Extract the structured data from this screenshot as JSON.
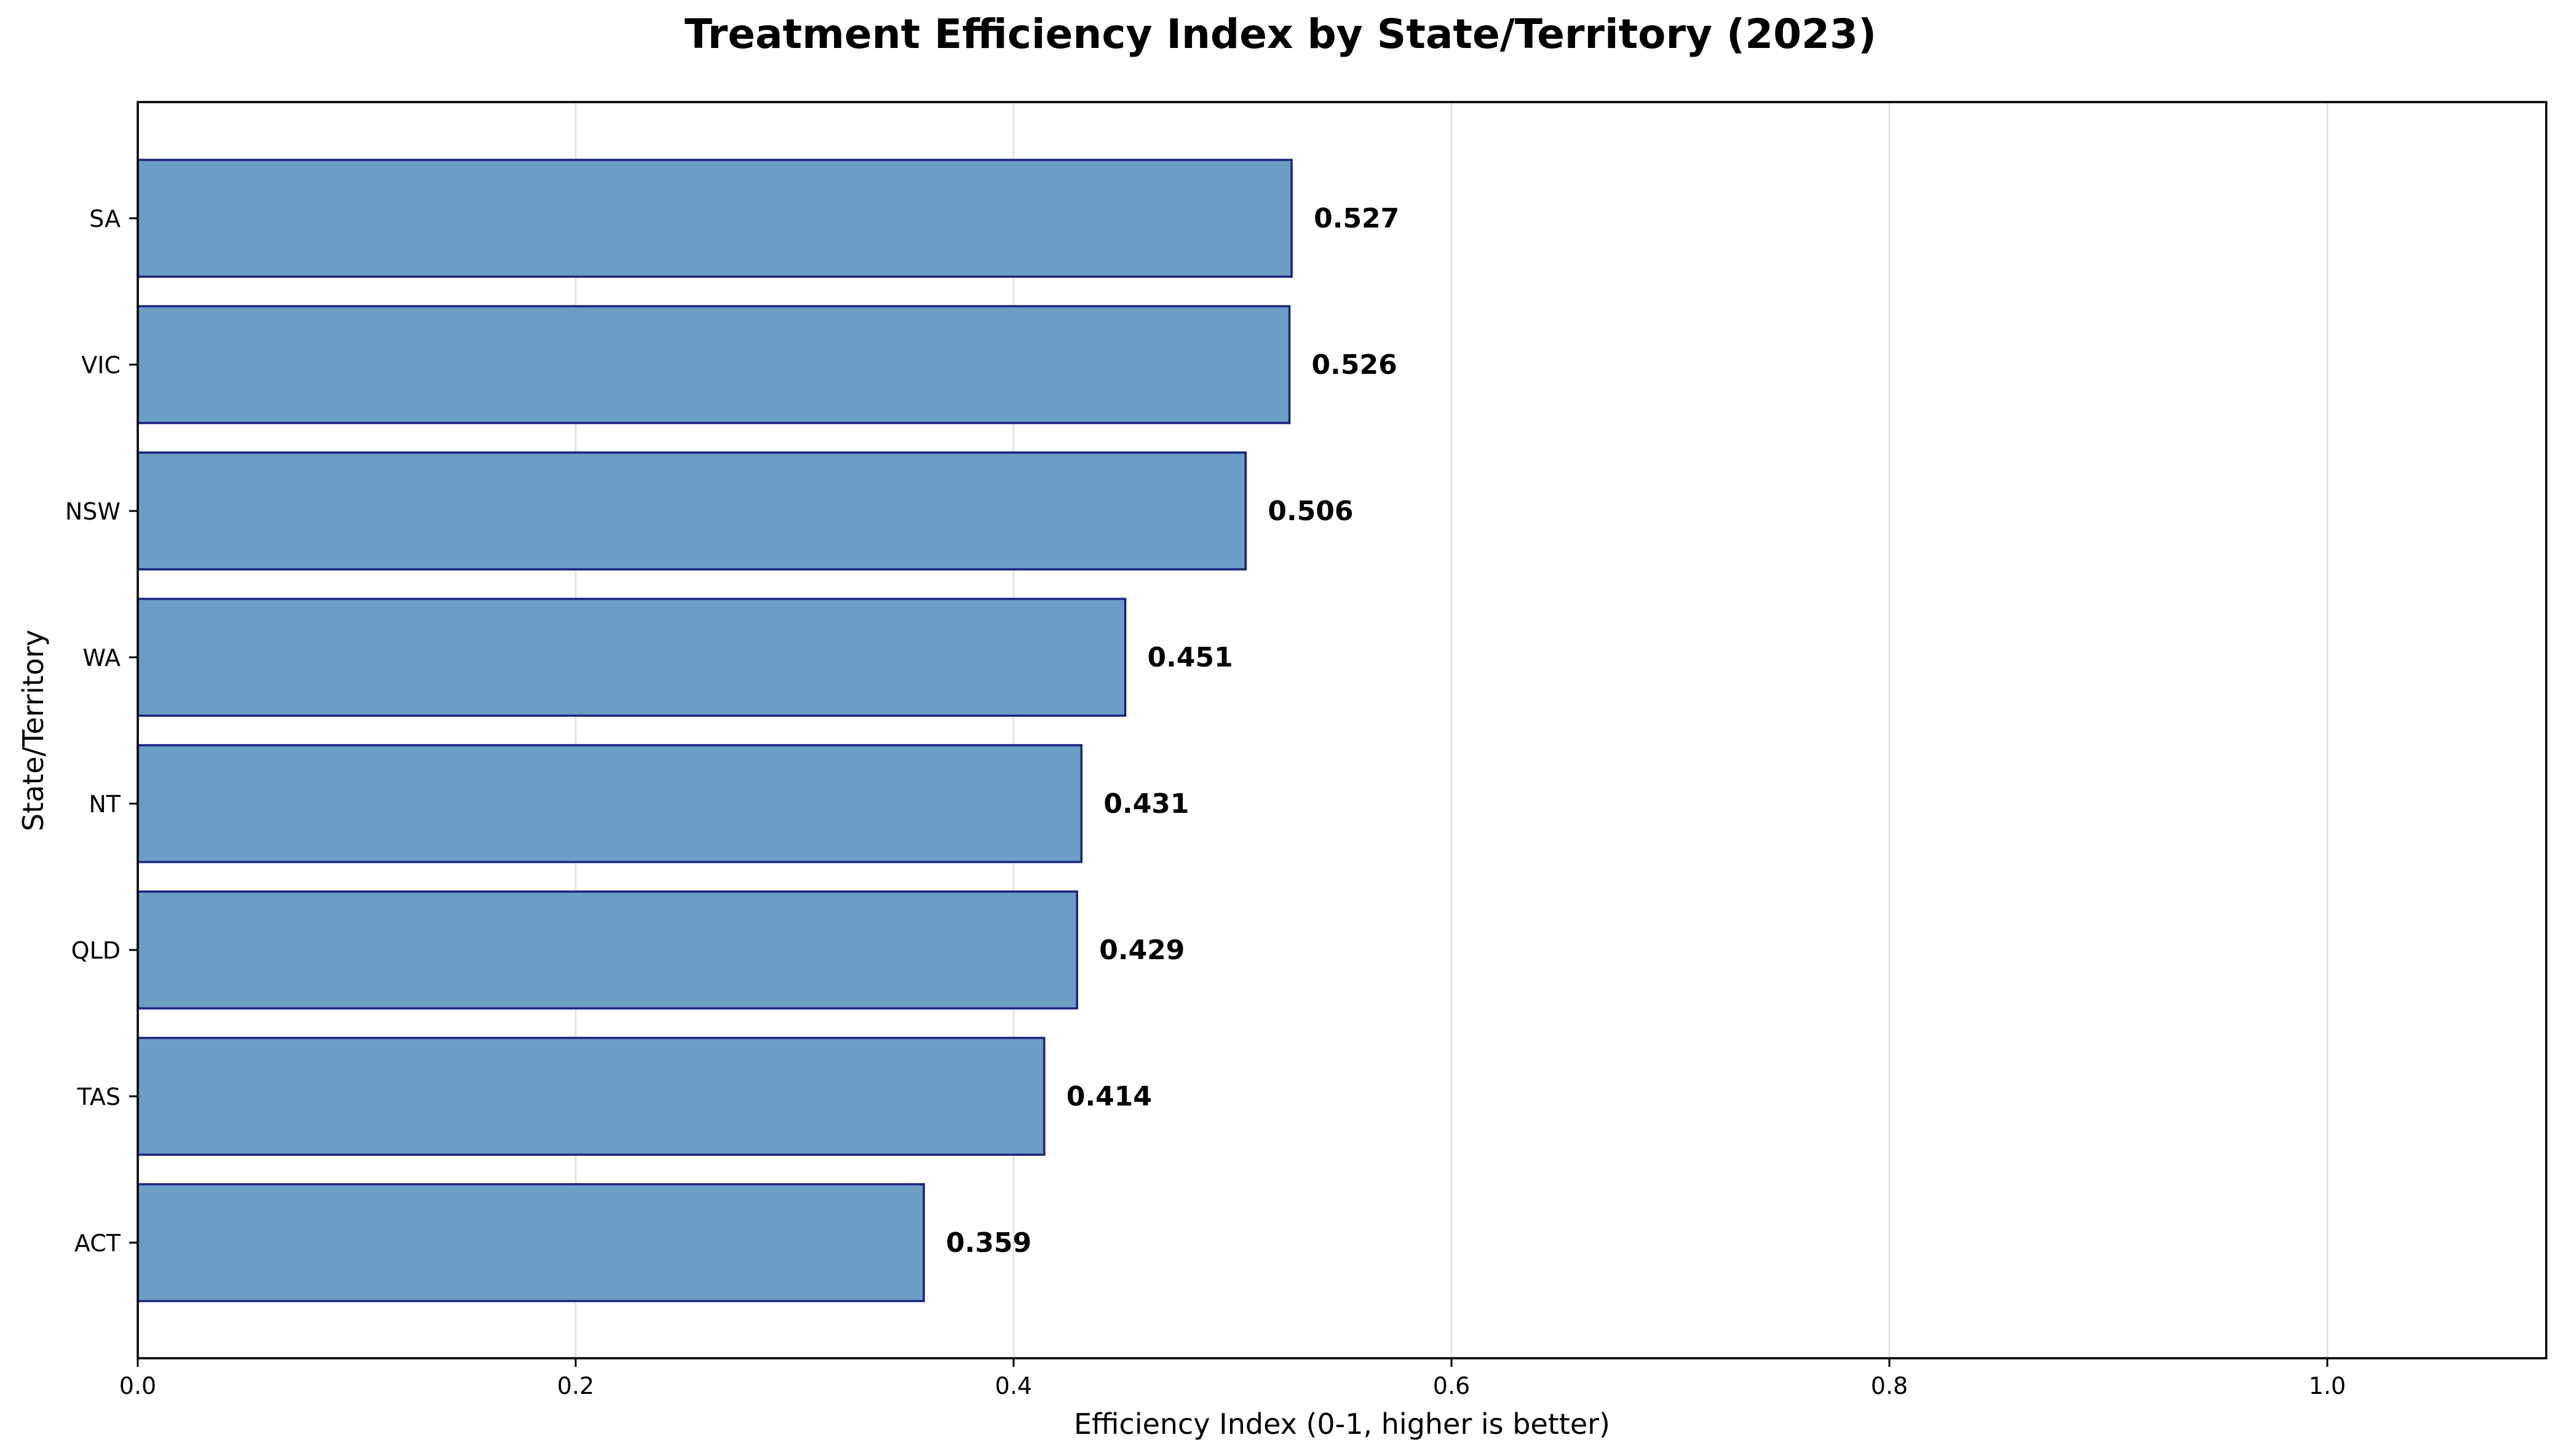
{
  "chart_data": {
    "type": "bar",
    "orientation": "horizontal",
    "title": "Treatment Efficiency Index by State/Territory (2023)",
    "xlabel": "Efficiency Index (0-1, higher is better)",
    "ylabel": "State/Territory",
    "categories": [
      "SA",
      "VIC",
      "NSW",
      "WA",
      "NT",
      "QLD",
      "TAS",
      "ACT"
    ],
    "values": [
      0.527,
      0.526,
      0.506,
      0.451,
      0.431,
      0.429,
      0.414,
      0.359
    ],
    "value_labels": [
      "0.527",
      "0.526",
      "0.506",
      "0.451",
      "0.431",
      "0.429",
      "0.414",
      "0.359"
    ],
    "xlim": [
      0,
      1.1
    ],
    "xticks": [
      0.0,
      0.2,
      0.4,
      0.6,
      0.8,
      1.0
    ],
    "xtick_labels": [
      "0.0",
      "0.2",
      "0.4",
      "0.6",
      "0.8",
      "1.0"
    ],
    "grid": "x-axis vertical lines",
    "legend": "none",
    "colors": {
      "bar_fill": "#6b9dc5",
      "bar_edge": "#1a237e",
      "grid": "#e3e3e3"
    }
  }
}
